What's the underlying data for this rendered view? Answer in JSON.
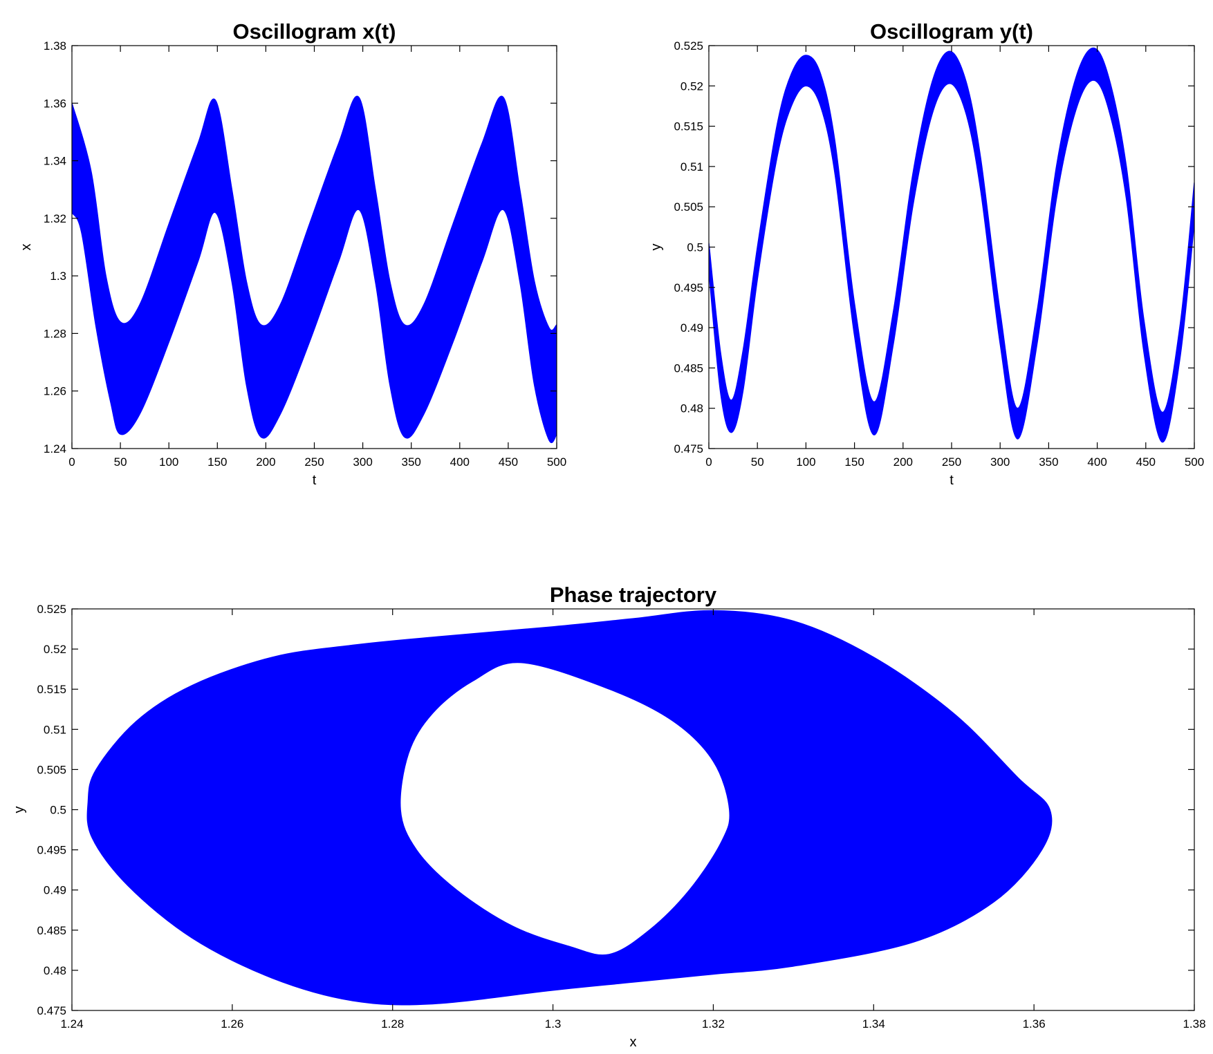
{
  "chart_data": [
    {
      "id": "osc-x",
      "type": "area",
      "title": "Oscillogram x(t)",
      "xlabel": "t",
      "ylabel": "x",
      "xlim": [
        0,
        500
      ],
      "ylim": [
        1.24,
        1.38
      ],
      "xticks": [
        "0",
        "50",
        "100",
        "150",
        "200",
        "250",
        "300",
        "350",
        "400",
        "450",
        "500"
      ],
      "yticks": [
        "1.24",
        "1.26",
        "1.28",
        "1.3",
        "1.32",
        "1.34",
        "1.36",
        "1.38"
      ],
      "color": "#0000ff",
      "grid": false,
      "legend": "none",
      "series": [
        {
          "upper": [
            [
              0,
              1.36
            ],
            [
              20,
              1.336
            ],
            [
              35,
              1.3
            ],
            [
              50,
              1.284
            ],
            [
              70,
              1.29
            ],
            [
              100,
              1.318
            ],
            [
              130,
              1.346
            ],
            [
              148,
              1.361
            ],
            [
              165,
              1.33
            ],
            [
              180,
              1.298
            ],
            [
              195,
              1.283
            ],
            [
              215,
              1.29
            ],
            [
              245,
              1.318
            ],
            [
              275,
              1.346
            ],
            [
              296,
              1.362
            ],
            [
              313,
              1.33
            ],
            [
              328,
              1.298
            ],
            [
              343,
              1.283
            ],
            [
              363,
              1.29
            ],
            [
              393,
              1.318
            ],
            [
              423,
              1.346
            ],
            [
              445,
              1.362
            ],
            [
              462,
              1.33
            ],
            [
              477,
              1.298
            ],
            [
              492,
              1.282
            ],
            [
              500,
              1.283
            ]
          ],
          "lower": [
            [
              0,
              1.322
            ],
            [
              10,
              1.315
            ],
            [
              25,
              1.282
            ],
            [
              40,
              1.256
            ],
            [
              50,
              1.245
            ],
            [
              70,
              1.252
            ],
            [
              100,
              1.277
            ],
            [
              130,
              1.305
            ],
            [
              148,
              1.322
            ],
            [
              165,
              1.298
            ],
            [
              180,
              1.262
            ],
            [
              195,
              1.244
            ],
            [
              215,
              1.252
            ],
            [
              245,
              1.277
            ],
            [
              275,
              1.305
            ],
            [
              296,
              1.323
            ],
            [
              313,
              1.298
            ],
            [
              328,
              1.262
            ],
            [
              343,
              1.244
            ],
            [
              363,
              1.252
            ],
            [
              393,
              1.277
            ],
            [
              423,
              1.305
            ],
            [
              445,
              1.323
            ],
            [
              462,
              1.298
            ],
            [
              477,
              1.262
            ],
            [
              492,
              1.243
            ],
            [
              500,
              1.245
            ]
          ]
        }
      ]
    },
    {
      "id": "osc-y",
      "type": "area",
      "title": "Oscillogram y(t)",
      "xlabel": "t",
      "ylabel": "y",
      "xlim": [
        0,
        500
      ],
      "ylim": [
        0.475,
        0.525
      ],
      "xticks": [
        "0",
        "50",
        "100",
        "150",
        "200",
        "250",
        "300",
        "350",
        "400",
        "450",
        "500"
      ],
      "yticks": [
        "0.475",
        "0.48",
        "0.485",
        "0.49",
        "0.495",
        "0.5",
        "0.505",
        "0.51",
        "0.515",
        "0.52",
        "0.525"
      ],
      "color": "#0000ff",
      "grid": false,
      "legend": "none",
      "series": [
        {
          "upper": [
            [
              0,
              0.5005
            ],
            [
              12,
              0.487
            ],
            [
              23,
              0.481
            ],
            [
              35,
              0.487
            ],
            [
              50,
              0.5
            ],
            [
              70,
              0.515
            ],
            [
              85,
              0.5215
            ],
            [
              100,
              0.5238
            ],
            [
              115,
              0.5215
            ],
            [
              130,
              0.513
            ],
            [
              150,
              0.493
            ],
            [
              170,
              0.4808
            ],
            [
              190,
              0.492
            ],
            [
              210,
              0.509
            ],
            [
              230,
              0.5205
            ],
            [
              248,
              0.5243
            ],
            [
              265,
              0.5205
            ],
            [
              280,
              0.511
            ],
            [
              300,
              0.492
            ],
            [
              318,
              0.48
            ],
            [
              338,
              0.492
            ],
            [
              358,
              0.51
            ],
            [
              378,
              0.521
            ],
            [
              396,
              0.5247
            ],
            [
              412,
              0.521
            ],
            [
              430,
              0.51
            ],
            [
              448,
              0.491
            ],
            [
              467,
              0.4795
            ],
            [
              485,
              0.49
            ],
            [
              500,
              0.508
            ]
          ],
          "lower": [
            [
              0,
              0.497
            ],
            [
              12,
              0.482
            ],
            [
              23,
              0.477
            ],
            [
              35,
              0.482
            ],
            [
              50,
              0.496
            ],
            [
              70,
              0.511
            ],
            [
              85,
              0.5175
            ],
            [
              100,
              0.52
            ],
            [
              115,
              0.5175
            ],
            [
              130,
              0.509
            ],
            [
              150,
              0.489
            ],
            [
              170,
              0.4767
            ],
            [
              190,
              0.488
            ],
            [
              210,
              0.505
            ],
            [
              230,
              0.5165
            ],
            [
              248,
              0.5203
            ],
            [
              265,
              0.5165
            ],
            [
              280,
              0.507
            ],
            [
              300,
              0.488
            ],
            [
              318,
              0.4762
            ],
            [
              338,
              0.488
            ],
            [
              358,
              0.506
            ],
            [
              378,
              0.517
            ],
            [
              396,
              0.5207
            ],
            [
              412,
              0.517
            ],
            [
              430,
              0.506
            ],
            [
              448,
              0.487
            ],
            [
              467,
              0.4758
            ],
            [
              485,
              0.486
            ],
            [
              500,
              0.503
            ]
          ]
        }
      ]
    },
    {
      "id": "phase",
      "type": "area",
      "title": "Phase trajectory",
      "xlabel": "x",
      "ylabel": "y",
      "xlim": [
        1.24,
        1.38
      ],
      "ylim": [
        0.475,
        0.525
      ],
      "xticks": [
        "1.24",
        "1.26",
        "1.28",
        "1.3",
        "1.32",
        "1.34",
        "1.36",
        "1.38"
      ],
      "yticks": [
        "0.475",
        "0.48",
        "0.485",
        "0.49",
        "0.495",
        "0.5",
        "0.505",
        "0.51",
        "0.515",
        "0.52",
        "0.525"
      ],
      "color": "#0000ff",
      "grid": false,
      "legend": "none",
      "series": [
        {
          "outer": [
            [
              1.243,
              0.505
            ],
            [
              1.248,
              0.511
            ],
            [
              1.255,
              0.5155
            ],
            [
              1.265,
              0.519
            ],
            [
              1.275,
              0.5205
            ],
            [
              1.285,
              0.5215
            ],
            [
              1.3,
              0.5228
            ],
            [
              1.31,
              0.5238
            ],
            [
              1.32,
              0.5248
            ],
            [
              1.33,
              0.5235
            ],
            [
              1.34,
              0.519
            ],
            [
              1.35,
              0.512
            ],
            [
              1.358,
              0.504
            ],
            [
              1.362,
              0.5
            ],
            [
              1.361,
              0.495
            ],
            [
              1.355,
              0.4885
            ],
            [
              1.345,
              0.4835
            ],
            [
              1.33,
              0.4805
            ],
            [
              1.32,
              0.4795
            ],
            [
              1.31,
              0.4785
            ],
            [
              1.3,
              0.4775
            ],
            [
              1.285,
              0.4758
            ],
            [
              1.275,
              0.4762
            ],
            [
              1.265,
              0.479
            ],
            [
              1.255,
              0.484
            ],
            [
              1.247,
              0.4905
            ],
            [
              1.2425,
              0.4965
            ],
            [
              1.242,
              0.501
            ]
          ],
          "inner": [
            [
              1.296,
              0.5183
            ],
            [
              1.29,
              0.516
            ],
            [
              1.285,
              0.512
            ],
            [
              1.282,
              0.507
            ],
            [
              1.281,
              0.5
            ],
            [
              1.283,
              0.495
            ],
            [
              1.288,
              0.49
            ],
            [
              1.295,
              0.4855
            ],
            [
              1.302,
              0.483
            ],
            [
              1.307,
              0.482
            ],
            [
              1.312,
              0.485
            ],
            [
              1.317,
              0.49
            ],
            [
              1.321,
              0.496
            ],
            [
              1.322,
              0.5
            ],
            [
              1.32,
              0.506
            ],
            [
              1.315,
              0.511
            ],
            [
              1.307,
              0.515
            ]
          ]
        }
      ]
    }
  ]
}
